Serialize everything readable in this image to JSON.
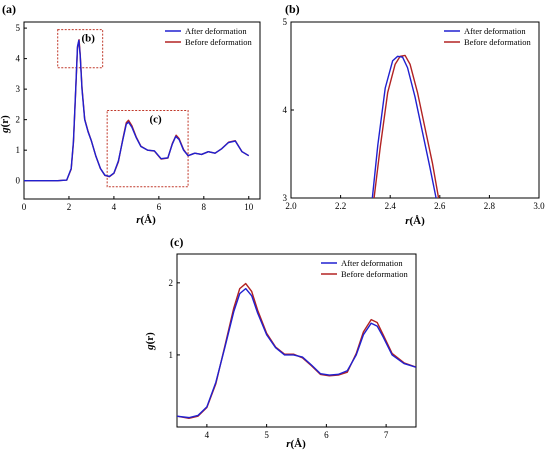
{
  "colors": {
    "after": "#2020d0",
    "before": "#b22222",
    "box": "#c0392b"
  },
  "chart_data": [
    {
      "panel": "(a)",
      "type": "line",
      "xlabel_italic": "r",
      "xlabel_rest": "(Å)",
      "ylabel_italic": "g",
      "ylabel_rest": "(r)",
      "xlim": [
        0,
        10.5
      ],
      "ylim": [
        -0.6,
        5.2
      ],
      "xticks": [
        0,
        2,
        4,
        6,
        8,
        10
      ],
      "yticks": [
        0,
        1,
        2,
        3,
        4,
        5
      ],
      "legend": "top-right",
      "legend_entries": [
        "After deformation",
        "Before deformation"
      ],
      "annotations": [
        {
          "label": "(b)",
          "x_range": [
            1.5,
            3.5
          ],
          "y_range": [
            3.7,
            4.95
          ]
        },
        {
          "label": "(c)",
          "x_range": [
            3.7,
            7.3
          ],
          "y_range": [
            -0.2,
            2.3
          ]
        }
      ],
      "series": [
        {
          "name": "After deformation",
          "x": [
            0,
            1.5,
            1.9,
            2.1,
            2.2,
            2.3,
            2.38,
            2.44,
            2.5,
            2.58,
            2.7,
            2.85,
            3.0,
            3.2,
            3.4,
            3.6,
            3.8,
            4.0,
            4.2,
            4.4,
            4.55,
            4.65,
            4.8,
            5.0,
            5.2,
            5.5,
            5.8,
            6.1,
            6.4,
            6.6,
            6.75,
            6.9,
            7.1,
            7.3,
            7.6,
            7.9,
            8.2,
            8.5,
            8.8,
            9.1,
            9.4,
            9.7,
            10.0
          ],
          "y": [
            0,
            0,
            0.02,
            0.4,
            1.3,
            3.0,
            4.4,
            4.6,
            4.1,
            3.0,
            2.0,
            1.6,
            1.3,
            0.8,
            0.4,
            0.18,
            0.14,
            0.25,
            0.65,
            1.35,
            1.85,
            1.92,
            1.75,
            1.4,
            1.12,
            1.0,
            0.98,
            0.72,
            0.75,
            1.2,
            1.45,
            1.35,
            1.0,
            0.82,
            0.9,
            0.86,
            0.95,
            0.9,
            1.05,
            1.25,
            1.3,
            0.95,
            0.82
          ]
        },
        {
          "name": "Before deformation",
          "x": [
            0,
            1.5,
            1.9,
            2.1,
            2.2,
            2.3,
            2.38,
            2.45,
            2.5,
            2.58,
            2.7,
            2.85,
            3.0,
            3.2,
            3.4,
            3.6,
            3.8,
            4.0,
            4.2,
            4.4,
            4.55,
            4.65,
            4.8,
            5.0,
            5.2,
            5.5,
            5.8,
            6.1,
            6.4,
            6.6,
            6.77,
            6.9,
            7.1,
            7.3,
            7.6,
            7.9,
            8.2,
            8.5,
            8.8,
            9.1,
            9.4,
            9.7,
            10.0
          ],
          "y": [
            0,
            0,
            0.02,
            0.38,
            1.25,
            2.95,
            4.35,
            4.62,
            4.15,
            3.05,
            2.02,
            1.62,
            1.3,
            0.8,
            0.4,
            0.17,
            0.13,
            0.24,
            0.62,
            1.38,
            1.9,
            1.98,
            1.8,
            1.42,
            1.13,
            1.0,
            0.97,
            0.71,
            0.74,
            1.22,
            1.49,
            1.38,
            1.02,
            0.82,
            0.9,
            0.86,
            0.95,
            0.9,
            1.05,
            1.26,
            1.31,
            0.95,
            0.82
          ]
        }
      ]
    },
    {
      "panel": "(b)",
      "type": "line",
      "xlabel_italic": "r",
      "xlabel_rest": "(Å)",
      "xlim": [
        2.0,
        3.0
      ],
      "ylim": [
        3.0,
        5.0
      ],
      "xticks": [
        2.0,
        2.2,
        2.4,
        2.6,
        2.8,
        3.0
      ],
      "yticks": [
        3,
        4,
        5
      ],
      "legend": "top-right",
      "legend_entries": [
        "After deformation",
        "Before deformation"
      ],
      "series": [
        {
          "name": "After deformation",
          "x": [
            2.328,
            2.35,
            2.38,
            2.41,
            2.43,
            2.45,
            2.47,
            2.5,
            2.53,
            2.56,
            2.585
          ],
          "y": [
            3.0,
            3.6,
            4.25,
            4.56,
            4.61,
            4.6,
            4.48,
            4.15,
            3.75,
            3.35,
            3.0
          ]
        },
        {
          "name": "Before deformation",
          "x": [
            2.335,
            2.36,
            2.39,
            2.42,
            2.44,
            2.46,
            2.48,
            2.51,
            2.54,
            2.57,
            2.595
          ],
          "y": [
            3.0,
            3.58,
            4.2,
            4.52,
            4.61,
            4.62,
            4.52,
            4.2,
            3.8,
            3.4,
            3.0
          ]
        }
      ]
    },
    {
      "panel": "(c)",
      "type": "line",
      "xlabel_italic": "r",
      "xlabel_rest": "(Å)",
      "ylabel_italic": "g",
      "ylabel_rest": "(r)",
      "xlim": [
        3.5,
        7.5
      ],
      "ylim": [
        0.0,
        2.4
      ],
      "xticks": [
        4,
        5,
        6,
        7
      ],
      "yticks": [
        1,
        2
      ],
      "legend": "top-right",
      "legend_entries": [
        "After deformation",
        "Before deformation"
      ],
      "series": [
        {
          "name": "After deformation",
          "x": [
            3.5,
            3.7,
            3.85,
            4.0,
            4.15,
            4.3,
            4.45,
            4.55,
            4.65,
            4.75,
            4.85,
            5.0,
            5.15,
            5.3,
            5.45,
            5.6,
            5.75,
            5.9,
            6.05,
            6.2,
            6.35,
            6.5,
            6.62,
            6.75,
            6.85,
            6.95,
            7.1,
            7.3,
            7.5
          ],
          "y": [
            0.15,
            0.13,
            0.16,
            0.28,
            0.62,
            1.1,
            1.6,
            1.85,
            1.92,
            1.82,
            1.58,
            1.28,
            1.1,
            1.0,
            1.0,
            0.97,
            0.86,
            0.74,
            0.72,
            0.73,
            0.78,
            1.0,
            1.28,
            1.44,
            1.4,
            1.25,
            1.0,
            0.88,
            0.83
          ]
        },
        {
          "name": "Before deformation",
          "x": [
            3.5,
            3.7,
            3.85,
            4.0,
            4.15,
            4.3,
            4.45,
            4.55,
            4.65,
            4.75,
            4.85,
            5.0,
            5.15,
            5.3,
            5.45,
            5.6,
            5.75,
            5.9,
            6.05,
            6.2,
            6.35,
            6.5,
            6.62,
            6.75,
            6.85,
            6.95,
            7.1,
            7.3,
            7.5
          ],
          "y": [
            0.15,
            0.12,
            0.15,
            0.27,
            0.6,
            1.12,
            1.65,
            1.92,
            1.99,
            1.88,
            1.62,
            1.3,
            1.11,
            1.01,
            1.01,
            0.96,
            0.85,
            0.73,
            0.71,
            0.72,
            0.76,
            1.02,
            1.32,
            1.49,
            1.45,
            1.28,
            1.02,
            0.89,
            0.83
          ]
        }
      ]
    }
  ]
}
